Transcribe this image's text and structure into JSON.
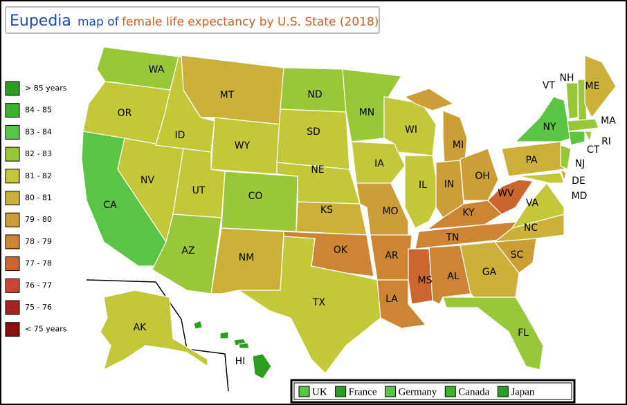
{
  "title": {
    "brand": "Eupedia",
    "prefix": "map of",
    "main": "female life expectancy by U.S. State (2018)"
  },
  "legend": [
    {
      "label": "> 85 years",
      "color": "#2c9f22"
    },
    {
      "label": "84 - 85",
      "color": "#3bb32a"
    },
    {
      "label": "83 - 84",
      "color": "#5cc445"
    },
    {
      "label": "82 - 83",
      "color": "#9ac73a"
    },
    {
      "label": "81 - 82",
      "color": "#c3c83a"
    },
    {
      "label": "80 - 81",
      "color": "#cbb13a"
    },
    {
      "label": "79 - 80",
      "color": "#cc9e36"
    },
    {
      "label": "78 - 79",
      "color": "#cc8533"
    },
    {
      "label": "77 - 78",
      "color": "#cc6630"
    },
    {
      "label": "76 - 77",
      "color": "#cc4433"
    },
    {
      "label": "75 - 76",
      "color": "#a82420"
    },
    {
      "label": "< 75 years",
      "color": "#8b1010"
    }
  ],
  "states": [
    {
      "label": "WA",
      "color": "#9ac73a"
    },
    {
      "label": "OR",
      "color": "#c3c83a"
    },
    {
      "label": "CA",
      "color": "#5cc445"
    },
    {
      "label": "NV",
      "color": "#c3c83a"
    },
    {
      "label": "ID",
      "color": "#c3c83a"
    },
    {
      "label": "MT",
      "color": "#cbb13a"
    },
    {
      "label": "WY",
      "color": "#c3c83a"
    },
    {
      "label": "UT",
      "color": "#c3c83a"
    },
    {
      "label": "AZ",
      "color": "#9ac73a"
    },
    {
      "label": "CO",
      "color": "#9ac73a"
    },
    {
      "label": "NM",
      "color": "#cbb13a"
    },
    {
      "label": "ND",
      "color": "#9ac73a"
    },
    {
      "label": "SD",
      "color": "#c3c83a"
    },
    {
      "label": "NE",
      "color": "#c3c83a"
    },
    {
      "label": "KS",
      "color": "#cbb13a"
    },
    {
      "label": "OK",
      "color": "#cc8533"
    },
    {
      "label": "TX",
      "color": "#c3c83a"
    },
    {
      "label": "MN",
      "color": "#9ac73a"
    },
    {
      "label": "IA",
      "color": "#c3c83a"
    },
    {
      "label": "MO",
      "color": "#cc9e36"
    },
    {
      "label": "AR",
      "color": "#cc8533"
    },
    {
      "label": "LA",
      "color": "#cc8533"
    },
    {
      "label": "WI",
      "color": "#c3c83a"
    },
    {
      "label": "IL",
      "color": "#c3c83a"
    },
    {
      "label": "MI",
      "color": "#cc9e36"
    },
    {
      "label": "IN",
      "color": "#cc9e36"
    },
    {
      "label": "OH",
      "color": "#cc9e36"
    },
    {
      "label": "KY",
      "color": "#cc8533"
    },
    {
      "label": "TN",
      "color": "#cc8533"
    },
    {
      "label": "MS",
      "color": "#cc6630"
    },
    {
      "label": "AL",
      "color": "#cc8533"
    },
    {
      "label": "GA",
      "color": "#cbb13a"
    },
    {
      "label": "FL",
      "color": "#9ac73a"
    },
    {
      "label": "SC",
      "color": "#cc9e36"
    },
    {
      "label": "NC",
      "color": "#cbb13a"
    },
    {
      "label": "VA",
      "color": "#c3c83a"
    },
    {
      "label": "WV",
      "color": "#cc6630"
    },
    {
      "label": "PA",
      "color": "#cbb13a"
    },
    {
      "label": "NY",
      "color": "#5cc445"
    },
    {
      "label": "NJ",
      "color": "#9ac73a"
    },
    {
      "label": "DE",
      "color": "#cbb13a"
    },
    {
      "label": "MD",
      "color": "#c3c83a"
    },
    {
      "label": "VT",
      "color": "#9ac73a"
    },
    {
      "label": "NH",
      "color": "#9ac73a"
    },
    {
      "label": "ME",
      "color": "#cbb13a"
    },
    {
      "label": "MA",
      "color": "#9ac73a"
    },
    {
      "label": "CT",
      "color": "#5cc445"
    },
    {
      "label": "RI",
      "color": "#9ac73a"
    },
    {
      "label": "AK",
      "color": "#c3c83a"
    },
    {
      "label": "HI",
      "color": "#2c9f22"
    }
  ],
  "countries": [
    {
      "label": "UK",
      "color": "#5cc445"
    },
    {
      "label": "France",
      "color": "#2c9f22"
    },
    {
      "label": "Germany",
      "color": "#5cc445"
    },
    {
      "label": "Canada",
      "color": "#3bb32a"
    },
    {
      "label": "Japan",
      "color": "#2c9f22"
    }
  ]
}
